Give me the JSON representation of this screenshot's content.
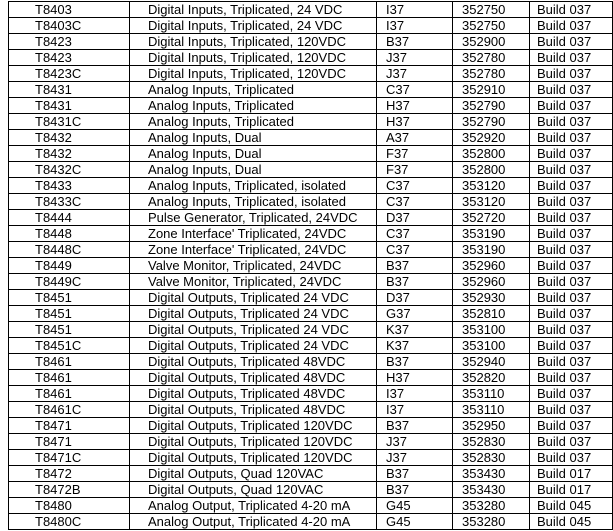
{
  "table": {
    "rows": [
      [
        "T8403",
        "Digital Inputs, Triplicated, 24 VDC",
        "I37",
        "352750",
        "Build 037"
      ],
      [
        "T8403C",
        "Digital Inputs, Triplicated, 24 VDC",
        "I37",
        "352750",
        "Build 037"
      ],
      [
        "T8423",
        "Digital Inputs, Triplicated, 120VDC",
        "B37",
        "352900",
        "Build 037"
      ],
      [
        "T8423",
        "Digital Inputs, Triplicated, 120VDC",
        "J37",
        "352780",
        "Build 037"
      ],
      [
        "T8423C",
        "Digital Inputs, Triplicated, 120VDC",
        "J37",
        "352780",
        "Build 037"
      ],
      [
        "T8431",
        "Analog Inputs, Triplicated",
        "C37",
        "352910",
        "Build 037"
      ],
      [
        "T8431",
        "Analog Inputs, Triplicated",
        "H37",
        "352790",
        "Build 037"
      ],
      [
        "T8431C",
        "Analog Inputs, Triplicated",
        "H37",
        "352790",
        "Build 037"
      ],
      [
        "T8432",
        "Analog Inputs, Dual",
        "A37",
        "352920",
        "Build 037"
      ],
      [
        "T8432",
        "Analog Inputs, Dual",
        "F37",
        "352800",
        "Build 037"
      ],
      [
        "T8432C",
        "Analog Inputs, Dual",
        "F37",
        "352800",
        "Build 037"
      ],
      [
        "T8433",
        "Analog Inputs, Triplicated, isolated",
        "C37",
        "353120",
        "Build 037"
      ],
      [
        "T8433C",
        "Analog Inputs, Triplicated, isolated",
        "C37",
        "353120",
        "Build 037"
      ],
      [
        "T8444",
        "Pulse Generator, Triplicated, 24VDC",
        "D37",
        "352720",
        "Build 037"
      ],
      [
        "T8448",
        "Zone Interface' Triplicated, 24VDC",
        "C37",
        "353190",
        "Build 037"
      ],
      [
        "T8448C",
        "Zone Interface' Triplicated, 24VDC",
        "C37",
        "353190",
        "Build 037"
      ],
      [
        "T8449",
        "Valve Monitor, Triplicated, 24VDC",
        "B37",
        "352960",
        "Build 037"
      ],
      [
        "T8449C",
        "Valve Monitor, Triplicated, 24VDC",
        "B37",
        "352960",
        "Build 037"
      ],
      [
        "T8451",
        "Digital Outputs, Triplicated 24 VDC",
        "D37",
        "352930",
        "Build 037"
      ],
      [
        "T8451",
        "Digital Outputs, Triplicated 24 VDC",
        "G37",
        "352810",
        "Build 037"
      ],
      [
        "T8451",
        "Digital Outputs, Triplicated 24 VDC",
        "K37",
        "353100",
        "Build 037"
      ],
      [
        "T8451C",
        "Digital Outputs, Triplicated 24 VDC",
        "K37",
        "353100",
        "Build 037"
      ],
      [
        "T8461",
        "Digital Outputs, Triplicated 48VDC",
        "B37",
        "352940",
        "Build 037"
      ],
      [
        "T8461",
        "Digital Outputs, Triplicated 48VDC",
        "H37",
        "352820",
        "Build 037"
      ],
      [
        "T8461",
        "Digital Outputs, Triplicated 48VDC",
        "I37",
        "353110",
        "Build 037"
      ],
      [
        "T8461C",
        "Digital Outputs, Triplicated 48VDC",
        "I37",
        "353110",
        "Build 037"
      ],
      [
        "T8471",
        "Digital Outputs, Triplicated 120VDC",
        "B37",
        "352950",
        "Build 037"
      ],
      [
        "T8471",
        "Digital Outputs, Triplicated 120VDC",
        "J37",
        "352830",
        "Build 037"
      ],
      [
        "T8471C",
        "Digital Outputs, Triplicated 120VDC",
        "J37",
        "352830",
        "Build 037"
      ],
      [
        "T8472",
        "Digital Outputs, Quad 120VAC",
        "B37",
        "353430",
        "Build 017"
      ],
      [
        "T8472B",
        "Digital Outputs, Quad 120VAC",
        "B37",
        "353430",
        "Build 017"
      ],
      [
        "T8480",
        "Analog Output, Triplicated 4-20 mA",
        "G45",
        "353280",
        "Build 045"
      ],
      [
        "T8480C",
        "Analog Output, Triplicated 4-20 mA",
        "G45",
        "353280",
        "Build 045"
      ]
    ]
  }
}
